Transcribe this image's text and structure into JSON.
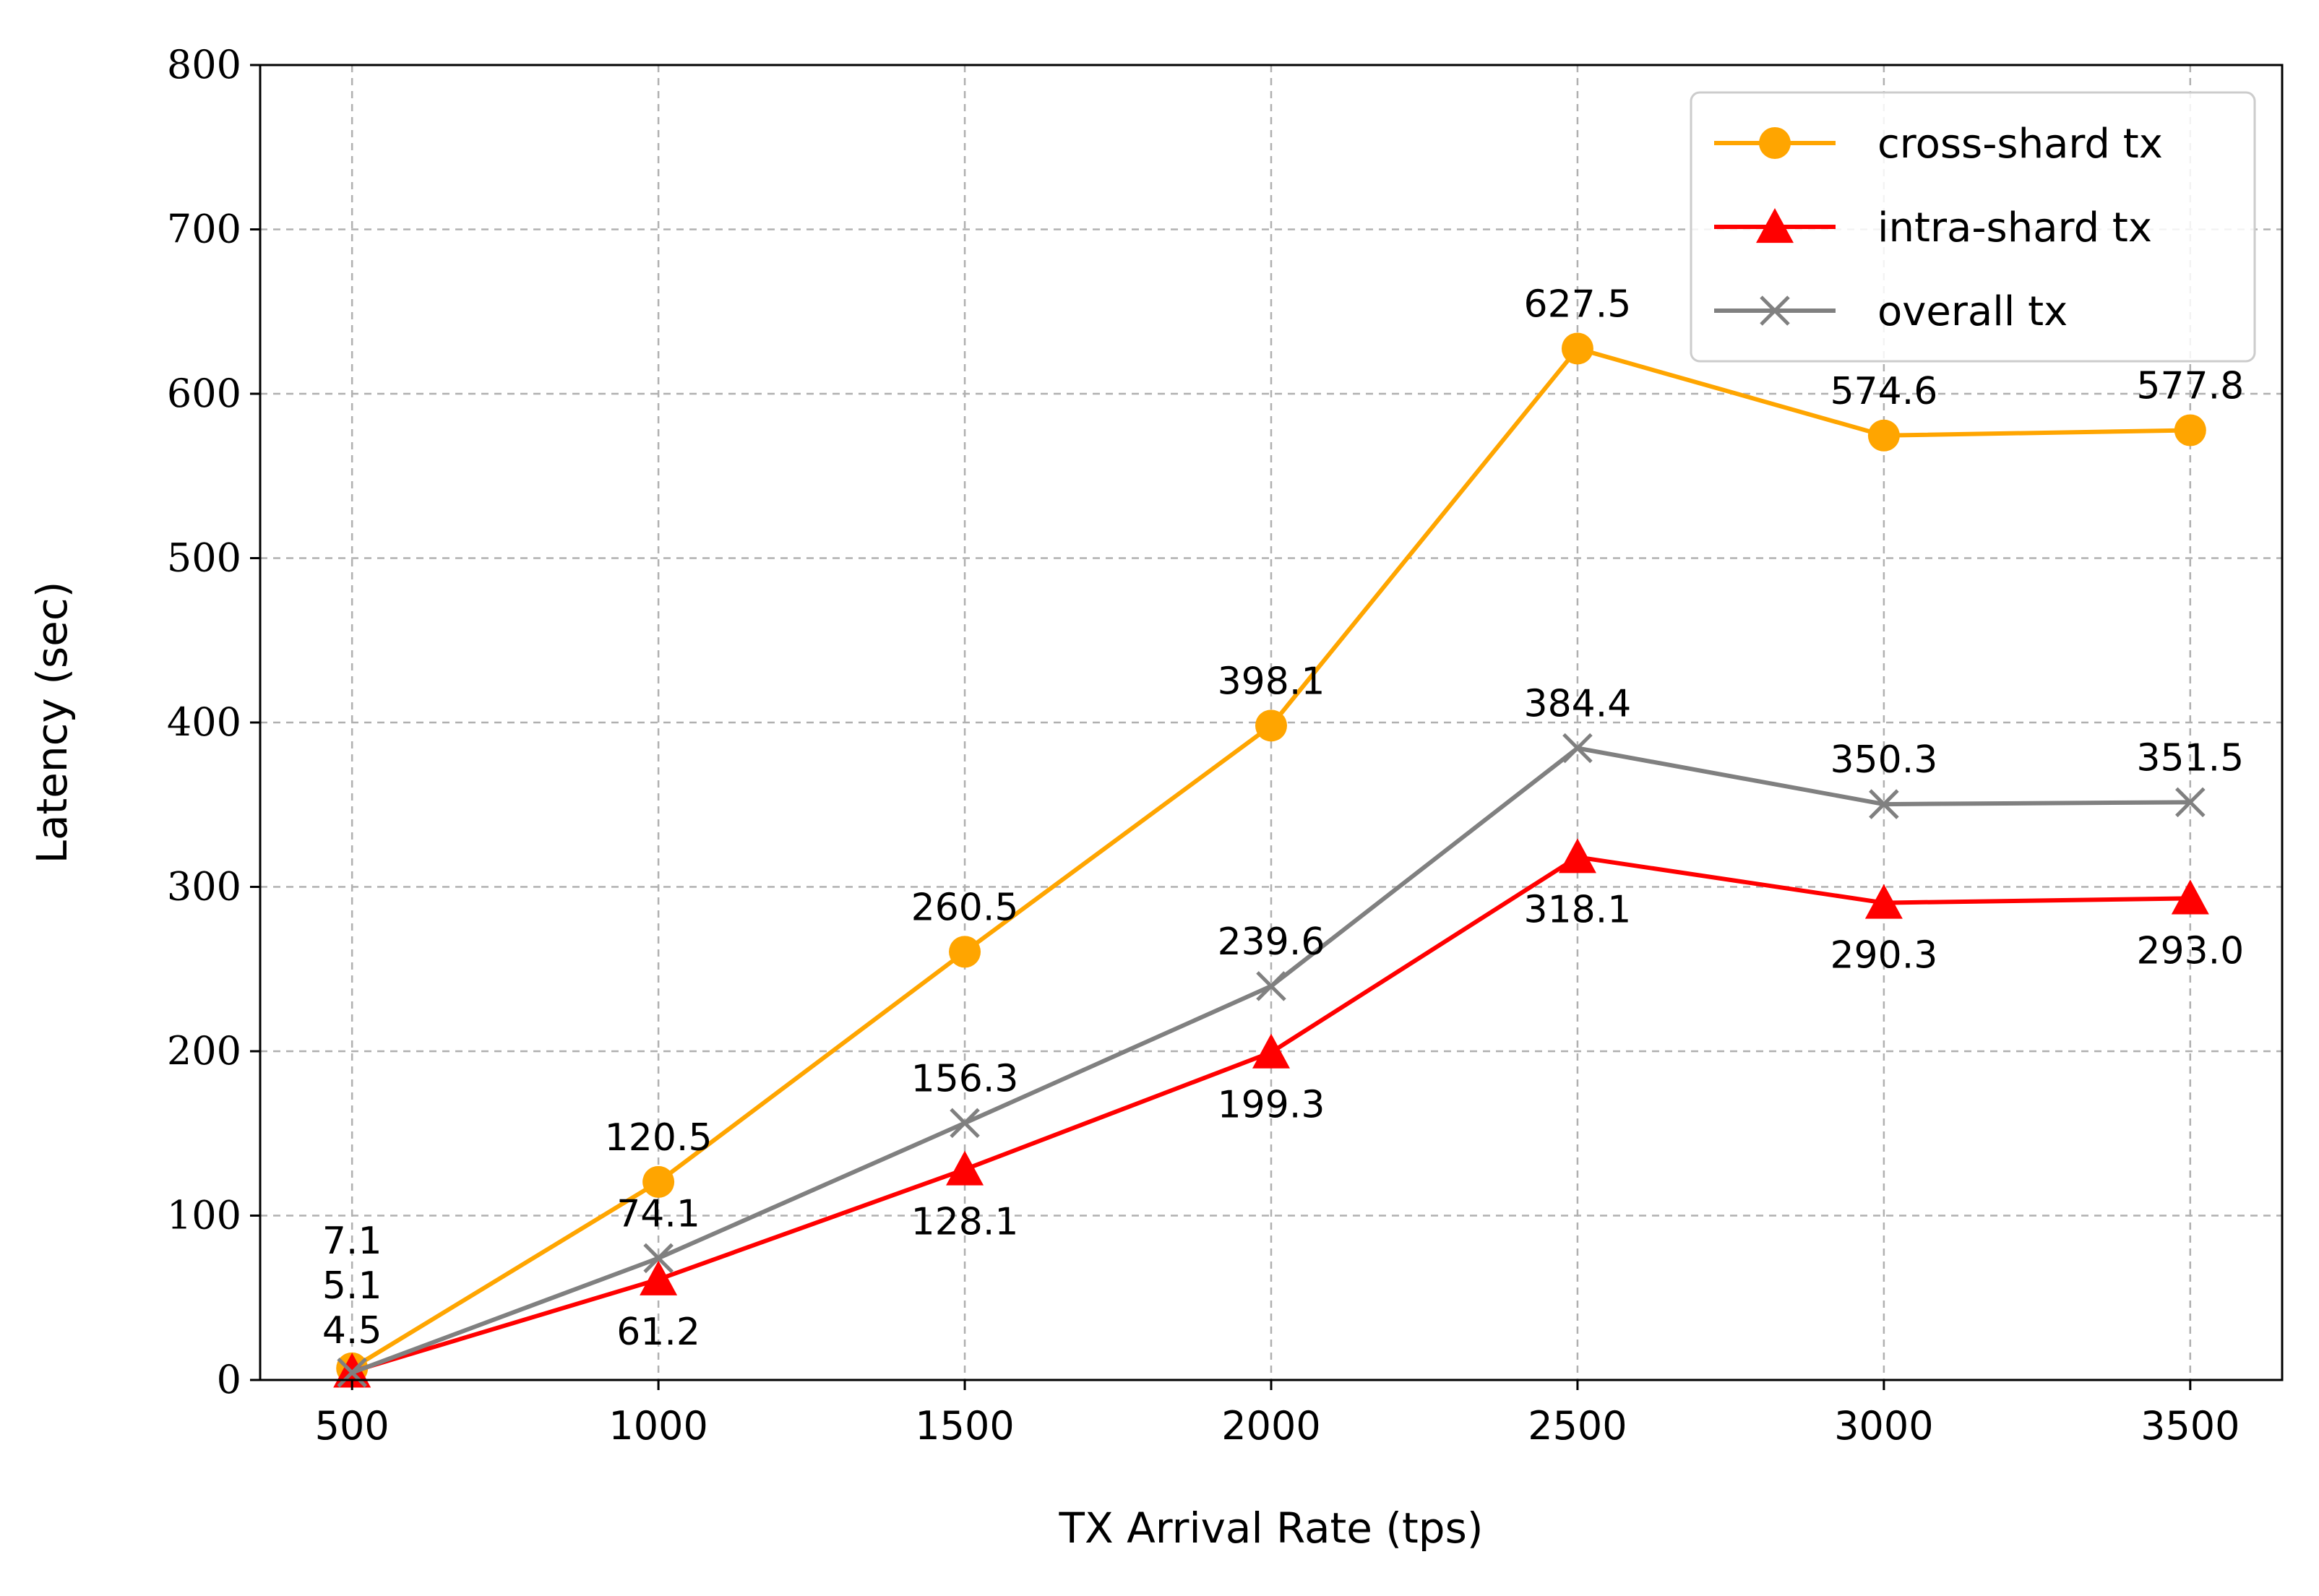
{
  "chart_data": {
    "type": "line",
    "title": "",
    "xlabel": "TX Arrival Rate (tps)",
    "ylabel": "Latency (sec)",
    "x": [
      500,
      1000,
      1500,
      2000,
      2500,
      3000,
      3500
    ],
    "x_tick_labels": [
      "500",
      "1000",
      "1500",
      "2000",
      "2500",
      "3000",
      "3500"
    ],
    "y_tick_labels": [
      "0",
      "100",
      "200",
      "300",
      "400",
      "500",
      "600",
      "700",
      "800"
    ],
    "y_ticks": [
      0,
      100,
      200,
      300,
      400,
      500,
      600,
      700,
      800
    ],
    "xlim": [
      350,
      3650
    ],
    "ylim": [
      0,
      800
    ],
    "grid": true,
    "legend_position": "top-right",
    "series": [
      {
        "name": "cross-shard tx",
        "color": "#FFA500",
        "marker": "circle",
        "values": [
          7.1,
          120.5,
          260.5,
          398.1,
          627.5,
          574.6,
          577.8
        ],
        "labels": [
          "7.1",
          "120.5",
          "260.5",
          "398.1",
          "627.5",
          "574.6",
          "577.8"
        ],
        "label_position": "above"
      },
      {
        "name": "intra-shard tx",
        "color": "#FF0000",
        "marker": "triangle",
        "values": [
          5.1,
          61.2,
          128.1,
          199.3,
          318.1,
          290.3,
          293.0
        ],
        "labels": [
          "5.1",
          "61.2",
          "128.1",
          "199.3",
          "318.1",
          "290.3",
          "293.0"
        ],
        "label_position": "below"
      },
      {
        "name": "overall tx",
        "color": "#808080",
        "marker": "x",
        "values": [
          4.5,
          74.1,
          156.3,
          239.6,
          384.4,
          350.3,
          351.5
        ],
        "labels": [
          "4.5",
          "74.1",
          "156.3",
          "239.6",
          "384.4",
          "350.3",
          "351.5"
        ],
        "label_position": "above"
      }
    ]
  }
}
